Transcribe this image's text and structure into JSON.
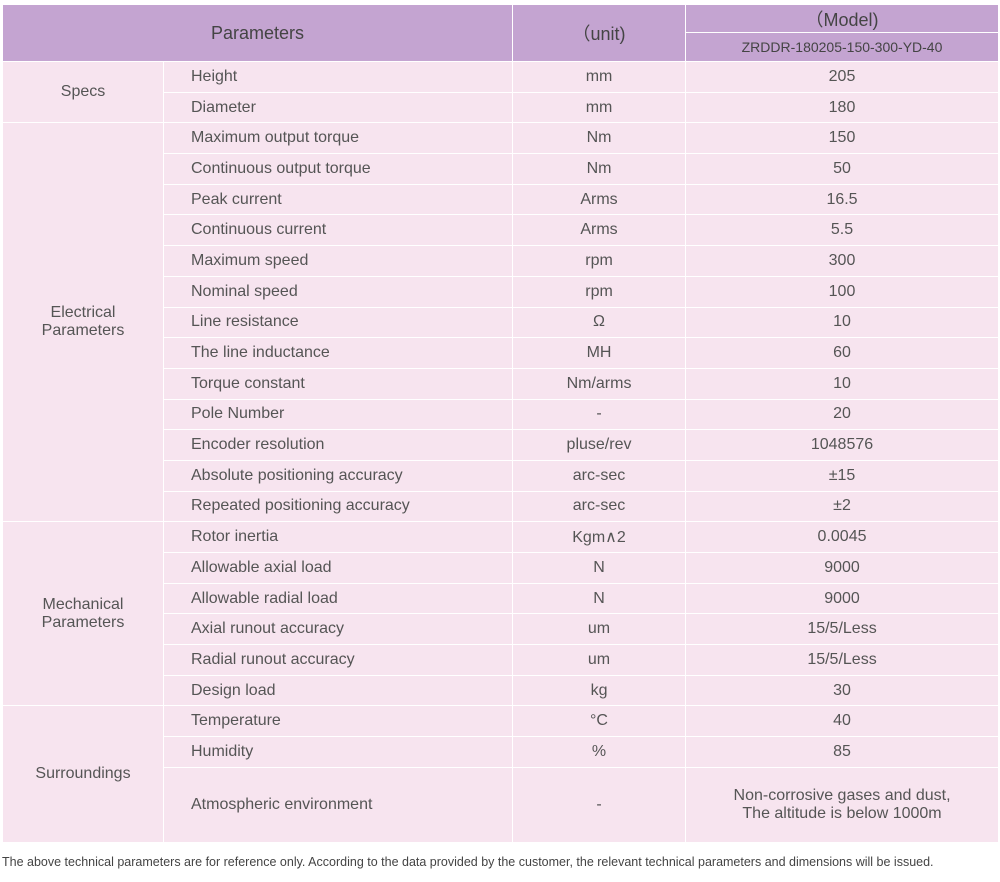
{
  "table": {
    "header": {
      "parameters": "Parameters",
      "unit": "（unit)",
      "model": "（Model)",
      "model_name": "ZRDDR-180205-150-300-YD-40"
    },
    "groups": [
      {
        "name": [
          "Specs"
        ],
        "rows": [
          [
            "Height",
            "mm",
            "205"
          ],
          [
            "Diameter",
            "mm",
            "180"
          ]
        ]
      },
      {
        "name": [
          "Electrical",
          "Parameters"
        ],
        "rows": [
          [
            "Maximum output torque",
            "Nm",
            "150"
          ],
          [
            "Continuous output torque",
            "Nm",
            "50"
          ],
          [
            "Peak current",
            "Arms",
            "16.5"
          ],
          [
            "Continuous current",
            "Arms",
            "5.5"
          ],
          [
            "Maximum speed",
            "rpm",
            "300"
          ],
          [
            "Nominal speed",
            "rpm",
            "100"
          ],
          [
            "Line resistance",
            "Ω",
            "10"
          ],
          [
            "The line inductance",
            "MH",
            "60"
          ],
          [
            "Torque constant",
            "Nm/arms",
            "10"
          ],
          [
            "Pole Number",
            "-",
            "20"
          ],
          [
            "Encoder resolution",
            "pluse/rev",
            "1048576"
          ],
          [
            "Absolute positioning accuracy",
            "arc-sec",
            "±15"
          ],
          [
            "Repeated positioning accuracy",
            "arc-sec",
            "±2"
          ]
        ]
      },
      {
        "name": [
          "Mechanical",
          "Parameters"
        ],
        "rows": [
          [
            "Rotor inertia",
            "Kgm∧2",
            "0.0045"
          ],
          [
            "Allowable axial load",
            "N",
            "9000"
          ],
          [
            "Allowable radial load",
            "N",
            "9000"
          ],
          [
            "Axial runout accuracy",
            "um",
            "15/5/Less"
          ],
          [
            "Radial runout accuracy",
            "um",
            "15/5/Less"
          ],
          [
            "Design load",
            "kg",
            "30"
          ]
        ]
      },
      {
        "name": [
          "Surroundings"
        ],
        "rows": [
          [
            "Temperature",
            "°C",
            "40"
          ],
          [
            "Humidity",
            "%",
            "85"
          ],
          [
            "Atmospheric environment",
            "-",
            [
              "Non-corrosive gases and dust,",
              "The altitude is below 1000m"
            ]
          ]
        ]
      }
    ],
    "note": "The above technical parameters are for reference only. According to the data provided by the customer, the relevant technical parameters and dimensions will be issued."
  }
}
